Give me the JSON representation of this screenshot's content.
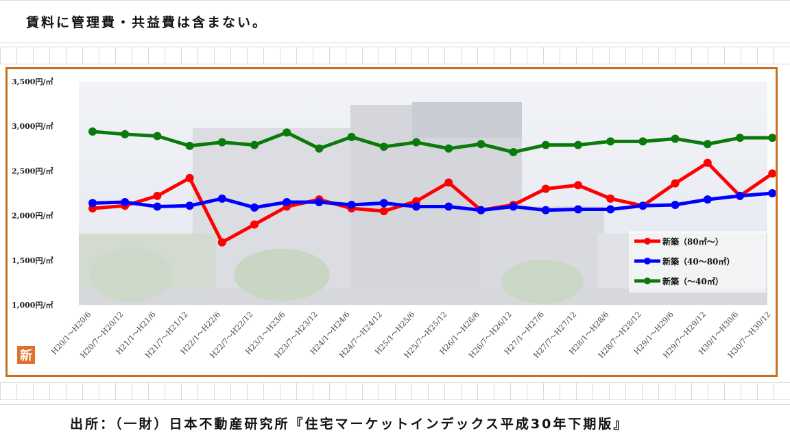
{
  "note": "賃料に管理費・共益費は含まない。",
  "source": "出所：（一財）日本不動産研究所『住宅マーケットインデックス平成30年下期版』",
  "badge": "新",
  "chart_data": {
    "type": "line",
    "title": "",
    "xlabel": "",
    "ylabel": "",
    "ylim": [
      1000,
      3500
    ],
    "y_ticks": [
      {
        "value": 3500,
        "label": "3,500円/㎡"
      },
      {
        "value": 3000,
        "label": "3,000円/㎡"
      },
      {
        "value": 2500,
        "label": "2,500円/㎡"
      },
      {
        "value": 2000,
        "label": "2,000円/㎡"
      },
      {
        "value": 1500,
        "label": "1,500円/㎡"
      },
      {
        "value": 1000,
        "label": "1,000円/㎡"
      }
    ],
    "categories": [
      "H20/1～H20/6",
      "H20/7～H20/12",
      "H21/1～H21/6",
      "H21/7～H21/12",
      "H22/1～H22/6",
      "H22/7～H22/12",
      "H23/1～H23/6",
      "H23/7～H23/12",
      "H24/1～H24/6",
      "H24/7～H24/12",
      "H25/1～H25/6",
      "H25/7～H25/12",
      "H26/1～H26/6",
      "H26/7～H26/12",
      "H27/1～H27/6",
      "H27/7～H27/12",
      "H28/1～H28/6",
      "H28/7～H28/12",
      "H29/1～H29/6",
      "H29/7～H29/12",
      "H30/1～H30/6",
      "H30/7～H30/12"
    ],
    "legend_position": "right",
    "grid": false,
    "series": [
      {
        "name": "新築（80㎡～）",
        "color": "#ff0000",
        "values": [
          2080,
          2110,
          2220,
          2420,
          1700,
          1900,
          2100,
          2180,
          2080,
          2050,
          2160,
          2370,
          2060,
          2120,
          2300,
          2340,
          2190,
          2110,
          2360,
          2590,
          2220,
          2470
        ]
      },
      {
        "name": "新築（40～80㎡）",
        "color": "#0000ff",
        "values": [
          2140,
          2150,
          2100,
          2110,
          2190,
          2090,
          2150,
          2150,
          2120,
          2140,
          2100,
          2100,
          2060,
          2100,
          2060,
          2070,
          2070,
          2110,
          2120,
          2180,
          2220,
          2250
        ]
      },
      {
        "name": "新築（～40㎡）",
        "color": "#0a7a0a",
        "values": [
          2940,
          2910,
          2890,
          2780,
          2820,
          2790,
          2930,
          2750,
          2880,
          2770,
          2820,
          2750,
          2800,
          2710,
          2790,
          2790,
          2830,
          2830,
          2860,
          2800,
          2870,
          2870
        ]
      }
    ]
  }
}
